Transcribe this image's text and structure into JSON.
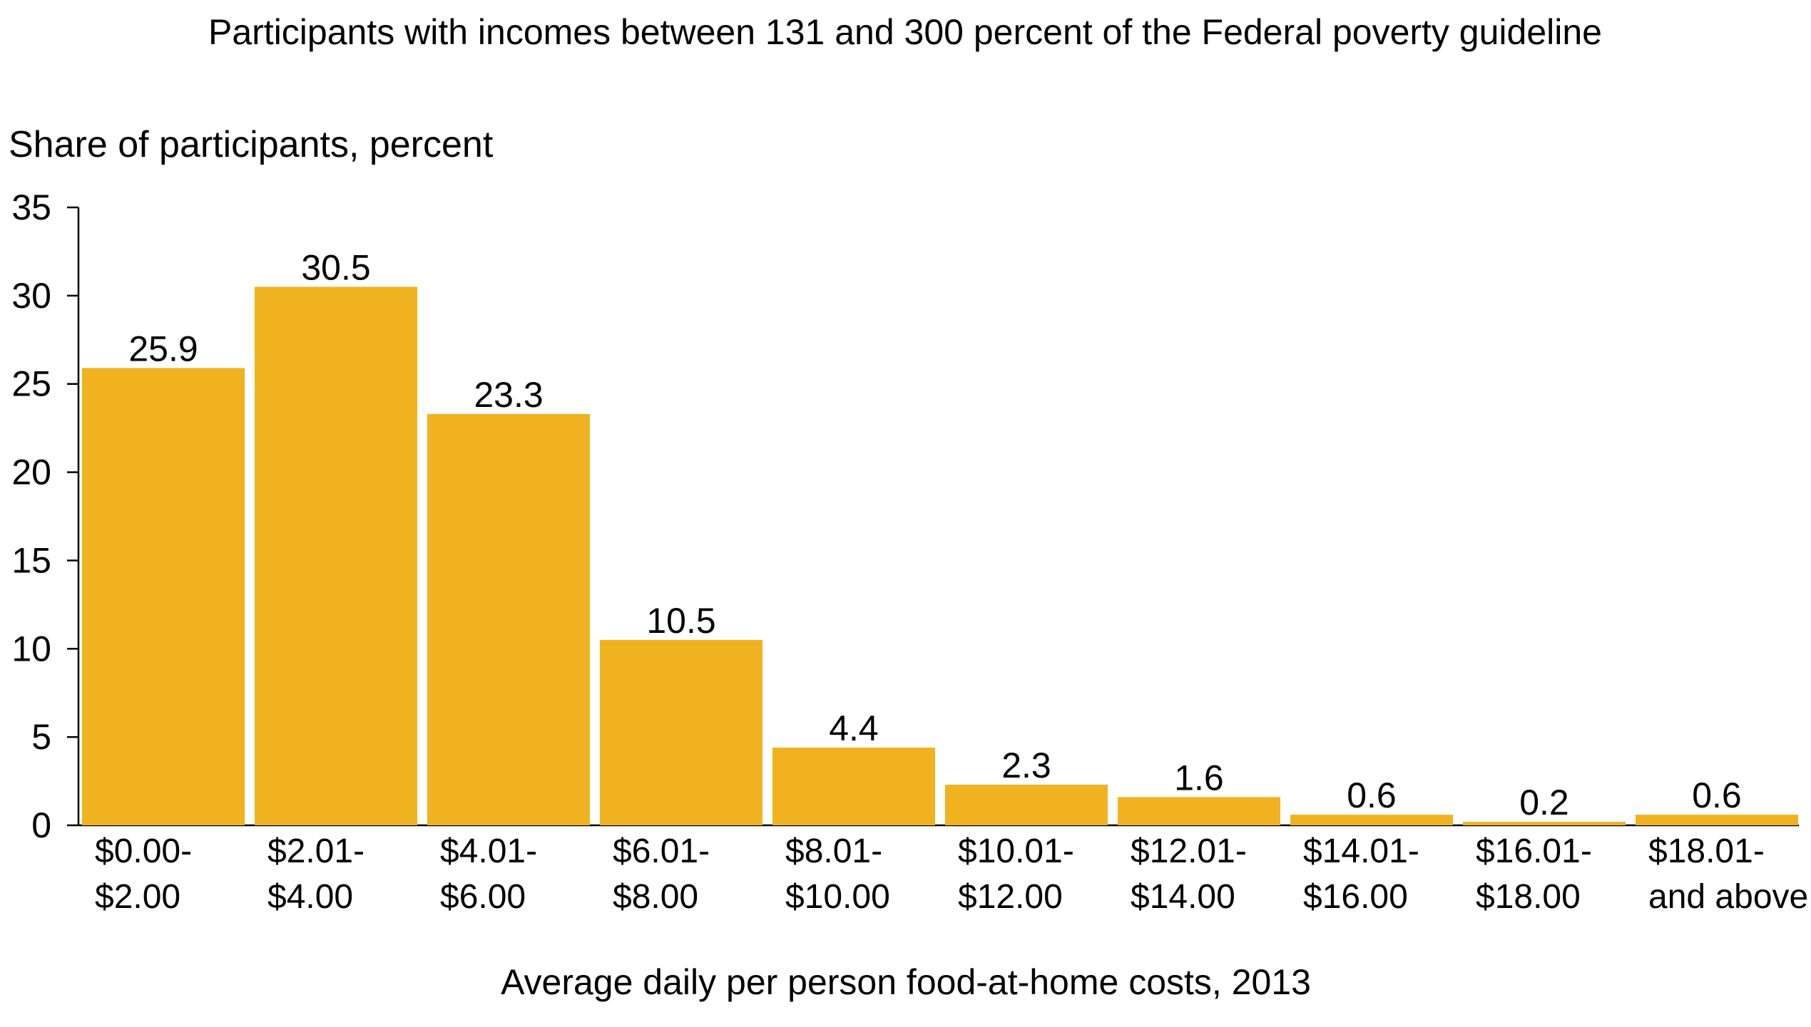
{
  "chart_data": {
    "type": "bar",
    "title": "Participants with incomes between 131 and 300 percent of the Federal poverty guideline",
    "ylabel": "Share of participants, percent",
    "xlabel": "Average daily per person food-at-home costs, 2013",
    "ylim": [
      0,
      35
    ],
    "yticks": [
      "0",
      "5",
      "10",
      "15",
      "20",
      "25",
      "30",
      "35"
    ],
    "categories": [
      [
        "$0.00-",
        "$2.00"
      ],
      [
        "$2.01-",
        "$4.00"
      ],
      [
        "$4.01-",
        "$6.00"
      ],
      [
        "$6.01-",
        "$8.00"
      ],
      [
        "$8.01-",
        "$10.00"
      ],
      [
        "$10.01-",
        "$12.00"
      ],
      [
        "$12.01-",
        "$14.00"
      ],
      [
        "$14.01-",
        "$16.00"
      ],
      [
        "$16.01-",
        "$18.00"
      ],
      [
        "$18.01-",
        "and above"
      ]
    ],
    "values": [
      25.9,
      30.5,
      23.3,
      10.5,
      4.4,
      2.3,
      1.6,
      0.6,
      0.2,
      0.6
    ],
    "value_labels": [
      "25.9",
      "30.5",
      "23.3",
      "10.5",
      "4.4",
      "2.3",
      "1.6",
      "0.6",
      "0.2",
      "0.6"
    ],
    "grid": false,
    "bar_color": "#F0B21F"
  }
}
